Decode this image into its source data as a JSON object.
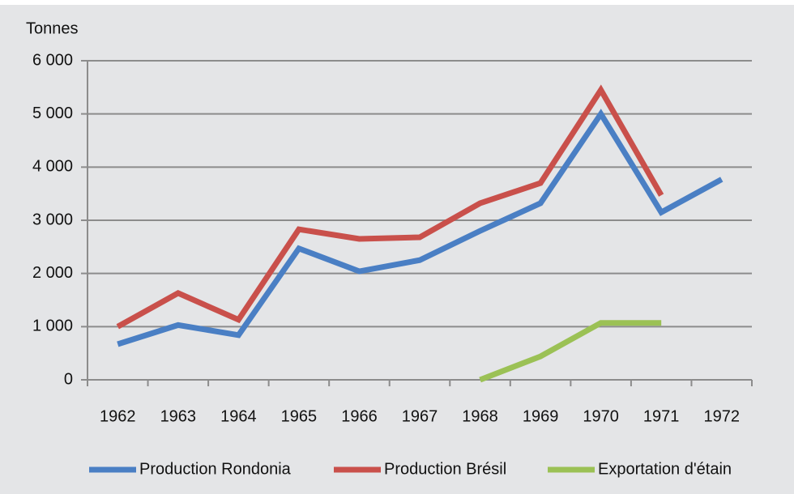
{
  "chart_data": {
    "type": "line",
    "y_label": "Tonnes",
    "categories": [
      "1962",
      "1963",
      "1964",
      "1965",
      "1966",
      "1967",
      "1968",
      "1969",
      "1970",
      "1971",
      "1972"
    ],
    "series": [
      {
        "name": "Production Rondonia",
        "color": "#4a7fc4",
        "values": [
          670,
          1030,
          840,
          2470,
          2040,
          2250,
          2800,
          3320,
          5000,
          3150,
          3770
        ]
      },
      {
        "name": "Production Brésil",
        "color": "#c9504b",
        "values": [
          1000,
          1630,
          1130,
          2830,
          2650,
          2680,
          3320,
          3700,
          5450,
          3470,
          null
        ]
      },
      {
        "name": "Exportation d'étain",
        "color": "#9bc155",
        "values": [
          null,
          null,
          null,
          null,
          null,
          null,
          0,
          440,
          1070,
          1070,
          null
        ]
      }
    ],
    "ylim": [
      0,
      6000
    ],
    "yticks": [
      0,
      {
        "value": 1000,
        "label": "1 000"
      },
      {
        "value": 2000,
        "label": "2 000"
      },
      {
        "value": 3000,
        "label": "3 000"
      },
      {
        "value": 4000,
        "label": "4 000"
      },
      {
        "value": 5000,
        "label": "5 000"
      },
      {
        "value": 6000,
        "label": "6 000"
      }
    ],
    "grid": true,
    "legend": "bottom"
  }
}
